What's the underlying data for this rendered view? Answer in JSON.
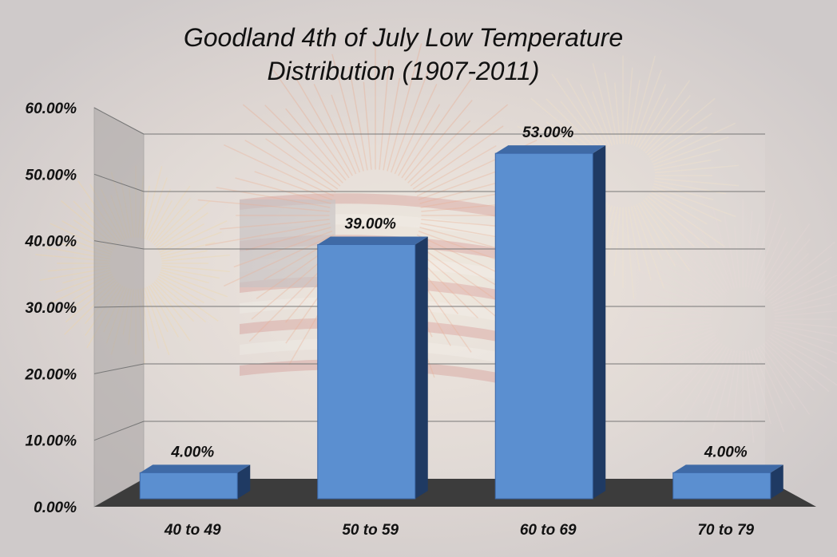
{
  "chart_data": {
    "type": "bar",
    "title_lines": [
      "Goodland 4th of July Low Temperature",
      "Distribution (1907-2011)"
    ],
    "categories": [
      "40 to 49",
      "50 to 59",
      "60 to 69",
      "70 to 79"
    ],
    "values": [
      4,
      39,
      53,
      4
    ],
    "data_labels": [
      "4.00%",
      "39.00%",
      "53.00%",
      "4.00%"
    ],
    "yticks": [
      "0.00%",
      "10.00%",
      "20.00%",
      "30.00%",
      "40.00%",
      "50.00%",
      "60.00%"
    ],
    "ylim": [
      0,
      60
    ],
    "xlabel": "",
    "ylabel": "",
    "grid": true,
    "legend": "none",
    "style": "3d-bar",
    "colors": {
      "bar_front": "#5b8fd0",
      "bar_top": "#3f6aa6",
      "bar_side": "#1f3a63",
      "floor": "#3c3c3c",
      "wall": "#a8a4a4",
      "gridline": "#777777",
      "background": "#d8d4d4"
    }
  }
}
